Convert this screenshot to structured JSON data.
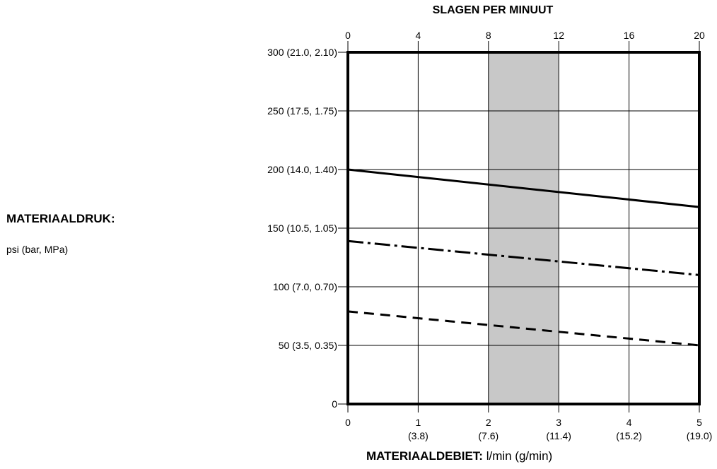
{
  "labels": {
    "y_title": "MATERIAALDRUK:",
    "y_units": "psi (bar, MPa)",
    "top_title": "SLAGEN PER MINUUT",
    "x_title": "MATERIAALDEBIET:",
    "x_units": "l/min (g/min)"
  },
  "chart_data": {
    "type": "line",
    "title": "",
    "xlabel": "MATERIAALDEBIET: l/min (g/min)",
    "ylabel": "MATERIAALDRUK: psi (bar, MPa)",
    "x2label": "SLAGEN PER MINUUT",
    "xlim": [
      0,
      5
    ],
    "ylim": [
      0,
      300
    ],
    "grid": true,
    "x_ticks": [
      {
        "value": 0,
        "label": "0",
        "sub": ""
      },
      {
        "value": 1,
        "label": "1",
        "sub": "(3.8)"
      },
      {
        "value": 2,
        "label": "2",
        "sub": "(7.6)"
      },
      {
        "value": 3,
        "label": "3",
        "sub": "(11.4)"
      },
      {
        "value": 4,
        "label": "4",
        "sub": "(15.2)"
      },
      {
        "value": 5,
        "label": "5",
        "sub": "(19.0)"
      }
    ],
    "x2_ticks": [
      {
        "value": 0,
        "label": "0"
      },
      {
        "value": 1,
        "label": "4"
      },
      {
        "value": 2,
        "label": "8"
      },
      {
        "value": 3,
        "label": "12"
      },
      {
        "value": 4,
        "label": "16"
      },
      {
        "value": 5,
        "label": "20"
      }
    ],
    "y_ticks": [
      {
        "value": 0,
        "label": "0"
      },
      {
        "value": 50,
        "label": "50 (3.5, 0.35)"
      },
      {
        "value": 100,
        "label": "100 (7.0, 0.70)"
      },
      {
        "value": 150,
        "label": "150 (10.5, 1.05)"
      },
      {
        "value": 200,
        "label": "200 (14.0, 1.40)"
      },
      {
        "value": 250,
        "label": "250 (17.5, 1.75)"
      },
      {
        "value": 300,
        "label": "300 (21.0, 2.10)"
      }
    ],
    "shaded_region": {
      "x_from": 2,
      "x_to": 3,
      "color": "#c8c8c8"
    },
    "series": [
      {
        "style": "solid",
        "color": "#000000",
        "x": [
          0,
          5
        ],
        "y": [
          200,
          168
        ]
      },
      {
        "style": "dash-dot",
        "color": "#000000",
        "x": [
          0,
          5
        ],
        "y": [
          139,
          110
        ]
      },
      {
        "style": "dashed",
        "color": "#000000",
        "x": [
          0,
          5
        ],
        "y": [
          79,
          50
        ]
      }
    ]
  }
}
